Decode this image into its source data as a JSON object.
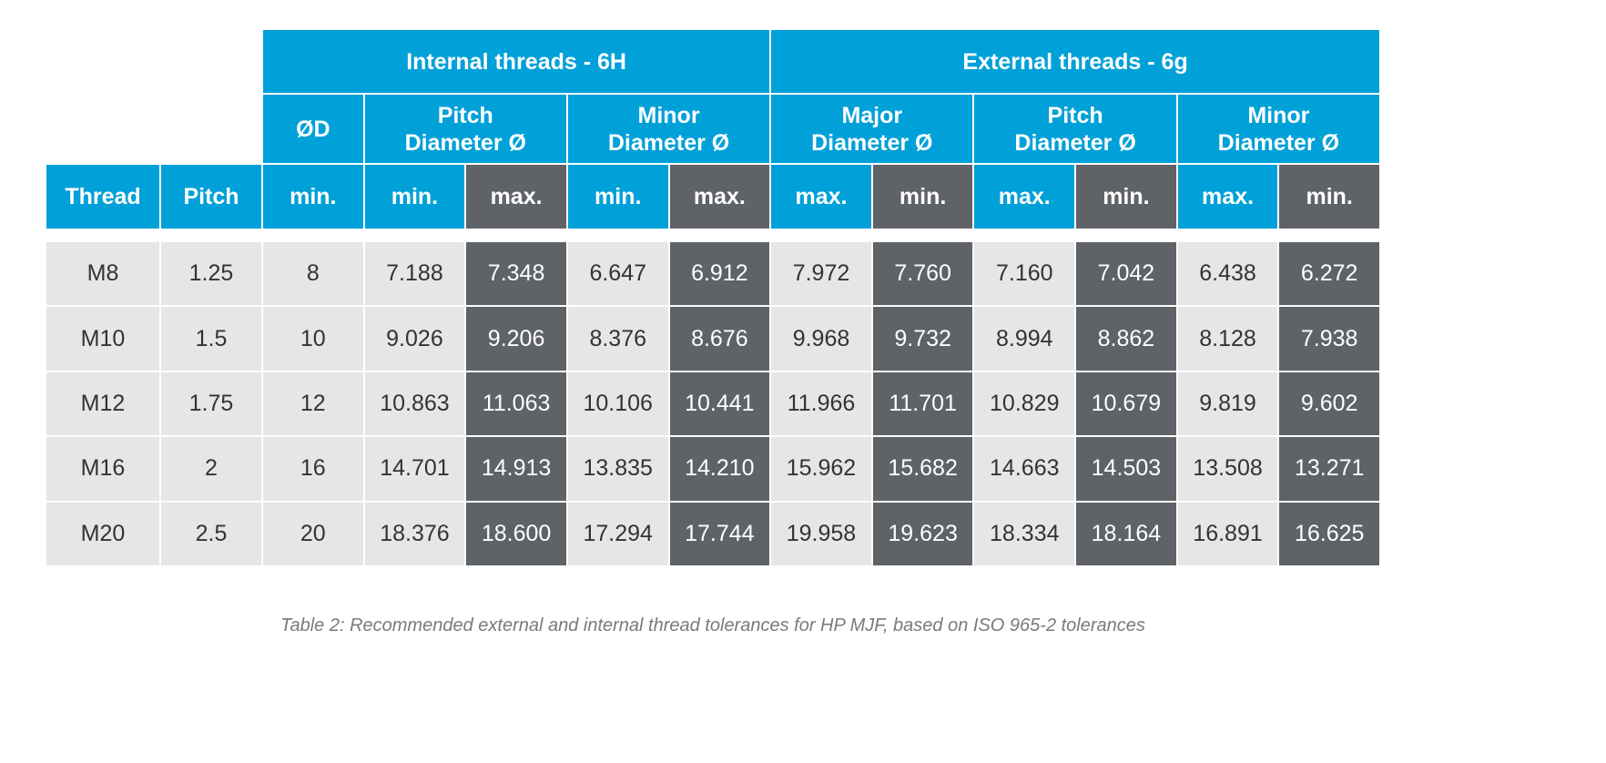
{
  "table": {
    "group_headers": [
      "Internal threads - 6H",
      "External threads - 6g"
    ],
    "sub_headers": [
      "ØD",
      "Pitch\nDiameter Ø",
      "Minor\nDiameter Ø",
      "Major\nDiameter Ø",
      "Pitch\nDiameter Ø",
      "Minor\nDiameter Ø"
    ],
    "columns": [
      "Thread",
      "Pitch",
      "min.",
      "min.",
      "max.",
      "min.",
      "max.",
      "max.",
      "min.",
      "max.",
      "min.",
      "max.",
      "min."
    ],
    "rows": [
      [
        "M8",
        "1.25",
        "8",
        "7.188",
        "7.348",
        "6.647",
        "6.912",
        "7.972",
        "7.760",
        "7.160",
        "7.042",
        "6.438",
        "6.272"
      ],
      [
        "M10",
        "1.5",
        "10",
        "9.026",
        "9.206",
        "8.376",
        "8.676",
        "9.968",
        "9.732",
        "8.994",
        "8.862",
        "8.128",
        "7.938"
      ],
      [
        "M12",
        "1.75",
        "12",
        "10.863",
        "11.063",
        "10.106",
        "10.441",
        "11.966",
        "11.701",
        "10.829",
        "10.679",
        "9.819",
        "9.602"
      ],
      [
        "M16",
        "2",
        "16",
        "14.701",
        "14.913",
        "13.835",
        "14.210",
        "15.962",
        "15.682",
        "14.663",
        "14.503",
        "13.508",
        "13.271"
      ],
      [
        "M20",
        "2.5",
        "20",
        "18.376",
        "18.600",
        "17.294",
        "17.744",
        "19.958",
        "19.623",
        "18.334",
        "18.164",
        "16.891",
        "16.625"
      ]
    ]
  },
  "caption": "Table 2: Recommended external and internal thread tolerances for HP MJF, based on ISO 965-2 tolerances",
  "colors": {
    "header_blue": "#00a0d8",
    "dark_cell": "#5f6368",
    "light_cell": "#e6e6e6"
  }
}
